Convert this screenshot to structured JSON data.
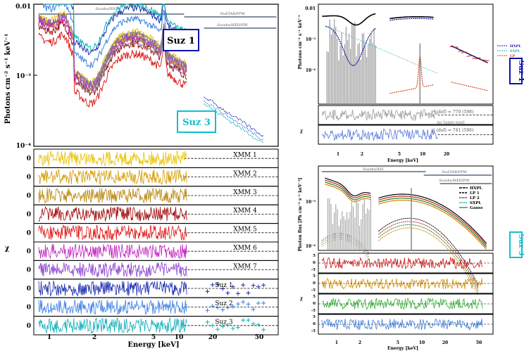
{
  "colors": {
    "xmm": [
      "#e6c200",
      "#d49a00",
      "#b8860b",
      "#9a0000",
      "#e01010",
      "#c020c0",
      "#8a3fd0"
    ],
    "suz": [
      "#1a2ab0",
      "#3a7fe0",
      "#10b0b8"
    ],
    "model": "#888888",
    "hxpl": "#1a1aa0",
    "sxpl": "#20b0c0",
    "lp": "#d04010",
    "gauss": "#777777",
    "box1": "#1010b0",
    "box3": "#10c0d0"
  },
  "left": {
    "ylabel": "Photons cm⁻² s⁻¹ keV⁻¹",
    "xlabel": "Energy [keV]",
    "residual_ylabel": "χ",
    "y_ticks": [
      "0.01",
      "10⁻³",
      "10⁻⁴"
    ],
    "x_ticks": [
      "1",
      "2",
      "5",
      "10",
      "20",
      "50"
    ],
    "instruments": {
      "xis": "Suzaku/XIS",
      "fpm": "NuSTAR/FPM",
      "pin": "Suzaku/HXD/PIN"
    },
    "box1": "Suz 1",
    "box3": "Suz 3",
    "residual_labels": [
      "XMM 1",
      "XMM 2",
      "XMM 3",
      "XMM 4",
      "XMM 5",
      "XMM 6",
      "XMM 7",
      "Suz 1",
      "Suz 2",
      "Suz 3"
    ],
    "residual_zero": "0"
  },
  "right_top": {
    "ylabel": "Photons cm⁻² s⁻¹ keV⁻¹",
    "xlabel": "Energy [keV]",
    "resid_ylabel": "χ",
    "y_ticks": [
      "0.01",
      "10⁻³",
      "10⁻⁴"
    ],
    "x_ticks": [
      "1",
      "2",
      "5",
      "10",
      "20"
    ],
    "legend": [
      "HXPL",
      "SXPL",
      "LP"
    ],
    "chi1": "χ² (dof) = 770 (598)",
    "chi1_note": "no lamp post",
    "chi2": "χ² (dof) = 741 (596)",
    "side_label": "Suz 1"
  },
  "right_bottom": {
    "ylabel": "Photon flux [Ph cm⁻² s⁻¹ keV⁻¹]",
    "xlabel": "Energy [keV]",
    "resid_ylabel": "χ",
    "y_ticks": [
      "10⁻³",
      "10⁻⁴"
    ],
    "x_ticks": [
      "1",
      "2",
      "5",
      "10",
      "20",
      "50"
    ],
    "instruments": {
      "xis": "Suzaku/XIS",
      "fpm": "NuSTAR/FPM",
      "pin": "Suzaku/HXD/PIN"
    },
    "legend": [
      "HXPL",
      "LP 1",
      "LP 2",
      "SXPL",
      "Gauss"
    ],
    "resid_ticks": [
      "5",
      "0",
      "-5"
    ],
    "side_label": "Suz 3"
  },
  "chart_data": [
    {
      "type": "line",
      "xlabel": "Energy [keV]",
      "ylabel": "Photons cm⁻² s⁻¹ keV⁻¹",
      "xscale": "log",
      "yscale": "log",
      "xlim": [
        0.5,
        60
      ],
      "ylim": [
        0.0001,
        0.01
      ],
      "series": [
        {
          "name": "Suz 1",
          "x": [
            0.6,
            0.8,
            1,
            1.5,
            2,
            3,
            5,
            7,
            10
          ],
          "y": [
            0.006,
            0.004,
            0.003,
            0.0012,
            0.0008,
            0.0015,
            0.0022,
            0.0025,
            0.0018
          ]
        },
        {
          "name": "Suz 3",
          "x": [
            0.6,
            1,
            2,
            5,
            10,
            15,
            20,
            30,
            40
          ],
          "y": [
            0.008,
            0.006,
            0.004,
            0.003,
            0.002,
            0.0008,
            0.0005,
            0.00035,
            0.0002
          ]
        }
      ],
      "residual_panels": [
        "XMM 1",
        "XMM 2",
        "XMM 3",
        "XMM 4",
        "XMM 5",
        "XMM 6",
        "XMM 7",
        "Suz 1",
        "Suz 2",
        "Suz 3"
      ]
    },
    {
      "type": "line",
      "xlabel": "Energy [keV]",
      "xscale": "log",
      "yscale": "log",
      "series": [
        {
          "name": "HXPL"
        },
        {
          "name": "SXPL"
        },
        {
          "name": "LP"
        }
      ]
    },
    {
      "type": "line",
      "xlabel": "Energy [keV]",
      "xscale": "log",
      "yscale": "log",
      "series": [
        {
          "name": "HXPL"
        },
        {
          "name": "LP 1"
        },
        {
          "name": "LP 2"
        },
        {
          "name": "SXPL"
        },
        {
          "name": "Gauss"
        }
      ]
    }
  ]
}
